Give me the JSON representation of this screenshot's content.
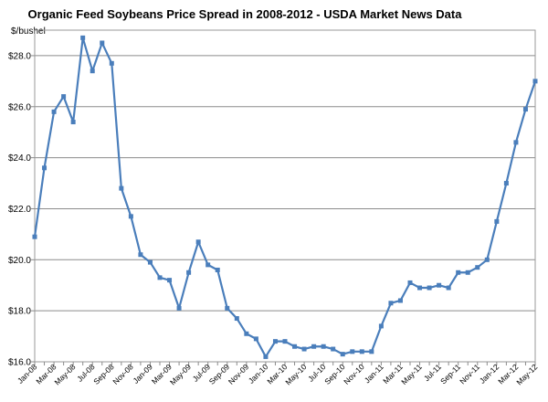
{
  "chart_data": {
    "type": "line",
    "title": "Organic Feed Soybeans Price Spread in 2008-2012 - USDA Market News Data",
    "ylabel": "$/bushel",
    "xlabel": "",
    "ylim": [
      16.0,
      29.0
    ],
    "yticks": [
      16.0,
      18.0,
      20.0,
      22.0,
      24.0,
      26.0,
      28.0
    ],
    "ytick_labels": [
      "$16.0",
      "$18.0",
      "$20.0",
      "$22.0",
      "$24.0",
      "$26.0",
      "$28.0"
    ],
    "grid": "horizontal",
    "x_tick_labels": [
      "Jan-08",
      "Mar-08",
      "May-08",
      "Jul-08",
      "Sep-08",
      "Nov-08",
      "Jan-09",
      "Mar-09",
      "May-09",
      "Jul-09",
      "Sep-09",
      "Nov-09",
      "Jan-10",
      "Mar-10",
      "May-10",
      "Jul-10",
      "Sep-10",
      "Nov-10",
      "Jan-11",
      "Mar-11",
      "May-11",
      "Jul-11",
      "Sep-11",
      "Nov-11",
      "Jan-12",
      "Mar-12",
      "May-12"
    ],
    "series": [
      {
        "name": "Organic Feed Soybeans",
        "color": "#4a7ebb",
        "marker": "square",
        "values": [
          20.9,
          23.6,
          25.8,
          26.4,
          25.4,
          28.7,
          27.4,
          28.5,
          27.7,
          22.8,
          21.7,
          20.2,
          19.9,
          19.3,
          19.2,
          18.1,
          19.5,
          20.7,
          19.8,
          19.6,
          18.1,
          17.7,
          17.1,
          16.9,
          16.2,
          16.8,
          16.8,
          16.6,
          16.5,
          16.6,
          16.6,
          16.5,
          16.3,
          16.4,
          16.4,
          16.4,
          17.4,
          18.3,
          18.4,
          19.1,
          18.9,
          18.9,
          19.0,
          18.9,
          19.5,
          19.5,
          19.7,
          20.0,
          21.5,
          23.0,
          24.6,
          25.9,
          27.0
        ]
      }
    ]
  }
}
